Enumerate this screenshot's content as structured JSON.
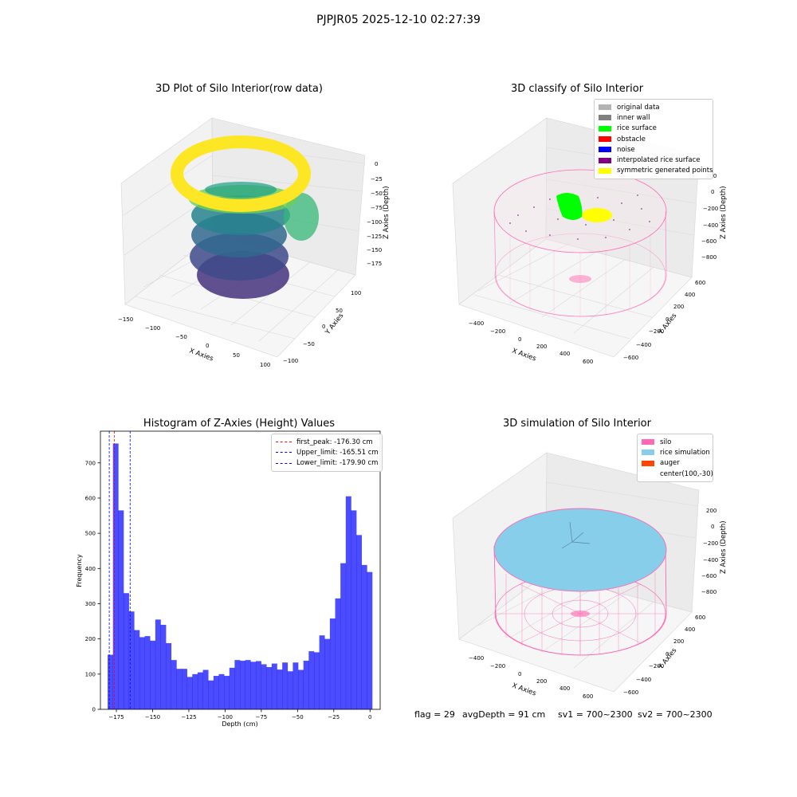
{
  "figure": {
    "suptitle": "PJPJR05 2025-12-10 02:27:39",
    "status": {
      "flag": "flag = 29",
      "avg_depth": "avgDepth = 91 cm",
      "sv1": "sv1 = 700~2300",
      "sv2": "sv2 = 700~2300"
    }
  },
  "plot1": {
    "title": "3D Plot of Silo Interior(row data)",
    "xlabel": "X Axies",
    "ylabel": "Y Axies",
    "zlabel": "Z Axies (Depth)",
    "xticks": [
      "−150",
      "−100",
      "−50",
      "0",
      "50",
      "100"
    ],
    "yticks": [
      "−100",
      "−50",
      "0",
      "50",
      "100"
    ],
    "zticks": [
      "0",
      "−25",
      "−50",
      "−75",
      "−100",
      "−125",
      "−150",
      "−175"
    ]
  },
  "plot2": {
    "title": "3D classify of Silo Interior",
    "xlabel": "X Axies",
    "ylabel": "Y Axies",
    "zlabel": "Z Axies (Depth)",
    "xticks": [
      "−400",
      "−200",
      "0",
      "200",
      "400",
      "600"
    ],
    "yticks": [
      "−600",
      "−400",
      "−200",
      "0",
      "200",
      "400",
      "600"
    ],
    "zticks": [
      "200",
      "0",
      "−200",
      "−400",
      "−600",
      "−800"
    ],
    "legend": [
      {
        "label": "original data",
        "color": "#b3b3b3"
      },
      {
        "label": "inner wall",
        "color": "#808080"
      },
      {
        "label": "rice surface",
        "color": "#00ff00"
      },
      {
        "label": "obstacle",
        "color": "#ff0000"
      },
      {
        "label": "noise",
        "color": "#0000ff"
      },
      {
        "label": "interpolated rice surface",
        "color": "#800080"
      },
      {
        "label": "symmetric generated points",
        "color": "#ffff00"
      }
    ]
  },
  "plot4": {
    "title": "3D simulation of Silo Interior",
    "xlabel": "X Axies",
    "ylabel": "Y Axies",
    "zlabel": "Z Axies (Depth)",
    "xticks": [
      "−400",
      "−200",
      "0",
      "200",
      "400",
      "600"
    ],
    "yticks": [
      "−600",
      "−400",
      "−200",
      "0",
      "200",
      "400",
      "600"
    ],
    "zticks": [
      "200",
      "0",
      "−200",
      "−400",
      "−600",
      "−800"
    ],
    "legend": [
      {
        "label": "silo",
        "color": "#ff69b4"
      },
      {
        "label": "rice simulation",
        "color": "#87ceeb"
      },
      {
        "label": "auger",
        "color": "#ff4500"
      },
      {
        "label": "center(100,-30)",
        "color": ""
      }
    ]
  },
  "chart_data": {
    "type": "bar",
    "title": "Histogram of Z-Axies (Height) Values",
    "xlabel": "Depth (cm)",
    "ylabel": "Frequency",
    "xlim": [
      -186,
      7
    ],
    "ylim": [
      0,
      790
    ],
    "xticks": [
      -175,
      -150,
      -125,
      -100,
      -75,
      -50,
      -25,
      0
    ],
    "xtick_labels": [
      "−175",
      "−150",
      "−125",
      "−100",
      "−75",
      "−50",
      "−25",
      "0"
    ],
    "yticks": [
      0,
      100,
      200,
      300,
      400,
      500,
      600,
      700
    ],
    "bar_color": "#0000ff",
    "bar_alpha": 0.7,
    "bin_start": -181.0,
    "bin_width": 3.65,
    "values": [
      155,
      755,
      565,
      330,
      278,
      225,
      205,
      208,
      195,
      255,
      240,
      188,
      140,
      115,
      115,
      92,
      100,
      105,
      112,
      82,
      95,
      100,
      95,
      118,
      140,
      138,
      140,
      135,
      137,
      128,
      120,
      130,
      113,
      133,
      108,
      133,
      112,
      138,
      165,
      162,
      210,
      200,
      258,
      315,
      415,
      605,
      565,
      495,
      410,
      390
    ],
    "lines": [
      {
        "label": "first_peak: -176.30 cm",
        "x": -176.3,
        "color": "#ff0000"
      },
      {
        "label": "Upper_limit: -165.51 cm",
        "x": -165.51,
        "color": "#0000ff"
      },
      {
        "label": "Lower_limit: -179.90 cm",
        "x": -179.9,
        "color": "#0000ff"
      }
    ]
  }
}
